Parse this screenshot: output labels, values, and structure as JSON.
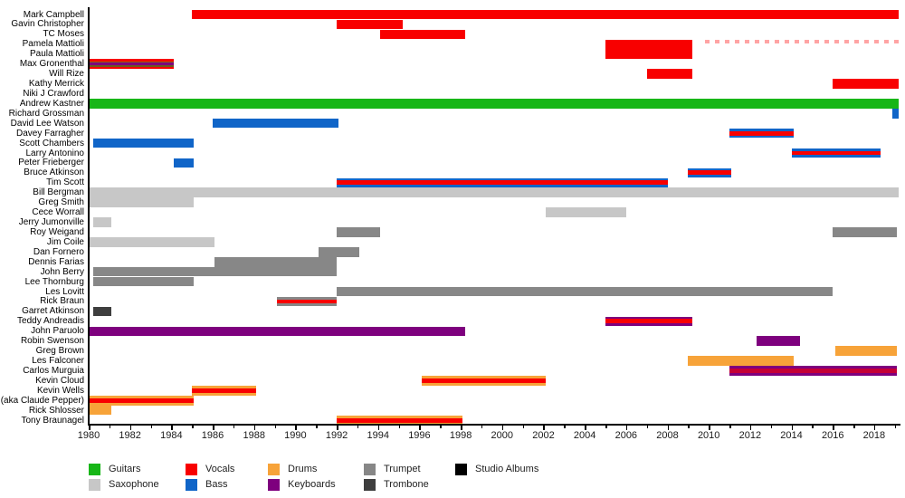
{
  "chart_data": {
    "type": "bar",
    "subtype": "gantt-membership-timeline",
    "title": "",
    "xlabel": "",
    "ylabel": "",
    "grid": false,
    "x_axis": {
      "min": 1980,
      "max": 2019.2,
      "major_tick_step": 2,
      "minor_tick_step": 1,
      "tick_labels": [
        "1980",
        "1982",
        "1984",
        "1986",
        "1988",
        "1990",
        "1992",
        "1994",
        "1996",
        "1998",
        "2000",
        "2002",
        "2004",
        "2006",
        "2008",
        "2010",
        "2012",
        "2014",
        "2016",
        "2018"
      ]
    },
    "role_colors": {
      "guitars": "#17b617",
      "vocals": "#f80000",
      "drums": "#f7a339",
      "trumpet": "#878787",
      "studio_albums": "#000000",
      "saxophone": "#c7c7c7",
      "bass": "#1065c8",
      "keyboards": "#7e007e",
      "trombone": "#3e3e3e"
    },
    "legend": {
      "position": "bottom-left",
      "items": [
        {
          "label": "Guitars",
          "role": "guitars",
          "col": 0,
          "row": 0
        },
        {
          "label": "Vocals",
          "role": "vocals",
          "col": 1,
          "row": 0
        },
        {
          "label": "Drums",
          "role": "drums",
          "col": 2,
          "row": 0
        },
        {
          "label": "Trumpet",
          "role": "trumpet",
          "col": 3,
          "row": 0
        },
        {
          "label": "Studio Albums",
          "role": "studio_albums",
          "col": 4,
          "row": 0
        },
        {
          "label": "Saxophone",
          "role": "saxophone",
          "col": 0,
          "row": 1
        },
        {
          "label": "Bass",
          "role": "bass",
          "col": 1,
          "row": 1
        },
        {
          "label": "Keyboards",
          "role": "keyboards",
          "col": 2,
          "row": 1
        },
        {
          "label": "Trombone",
          "role": "trombone",
          "col": 3,
          "row": 1
        }
      ]
    },
    "members": [
      {
        "name": "Mark Campbell",
        "segments": [
          {
            "start": 1985,
            "end": 2019.2,
            "roles": [
              "vocals"
            ]
          }
        ]
      },
      {
        "name": "Gavin Christopher",
        "segments": [
          {
            "start": 1992,
            "end": 1995.2,
            "roles": [
              "vocals"
            ]
          }
        ]
      },
      {
        "name": "TC Moses",
        "segments": [
          {
            "start": 1994.1,
            "end": 1998.2,
            "roles": [
              "vocals"
            ]
          }
        ]
      },
      {
        "name": "Pamela Mattioli",
        "segments": [
          {
            "start": 2005,
            "end": 2009.2,
            "roles": [
              "vocals"
            ]
          },
          {
            "start": 2009.8,
            "end": 2019.2,
            "roles": [
              "vocals"
            ],
            "style": "dashed"
          }
        ]
      },
      {
        "name": "Paula Mattioli",
        "segments": [
          {
            "start": 2005,
            "end": 2009.2,
            "roles": [
              "vocals"
            ]
          }
        ]
      },
      {
        "name": "Max Gronenthal",
        "segments": [
          {
            "start": 1980,
            "end": 1984.1,
            "roles": [
              "vocals",
              "drums",
              "guitars",
              "keyboards"
            ],
            "stripes": [
              {
                "c": "#f80000",
                "w": 2
              },
              {
                "c": "#8a6a14",
                "w": 1.6
              },
              {
                "c": "#7e007e",
                "w": 2.4
              },
              {
                "c": "#6b5a1e",
                "w": 1.6
              },
              {
                "c": "#f80000",
                "w": 2
              }
            ]
          }
        ]
      },
      {
        "name": "Will Rize",
        "segments": [
          {
            "start": 2007,
            "end": 2009.2,
            "roles": [
              "vocals"
            ]
          }
        ]
      },
      {
        "name": "Kathy Merrick",
        "segments": [
          {
            "start": 2016,
            "end": 2019.2,
            "roles": [
              "vocals"
            ]
          }
        ]
      },
      {
        "name": "Niki J Crawford",
        "segments": []
      },
      {
        "name": "Andrew Kastner",
        "segments": [
          {
            "start": 1980,
            "end": 2019.2,
            "roles": [
              "guitars"
            ]
          }
        ]
      },
      {
        "name": "Richard Grossman",
        "segments": [
          {
            "start": 2018.9,
            "end": 2019.2,
            "roles": [
              "bass"
            ]
          }
        ]
      },
      {
        "name": "David Lee Watson",
        "segments": [
          {
            "start": 1986,
            "end": 1992.1,
            "roles": [
              "bass"
            ]
          }
        ]
      },
      {
        "name": "Davey Farragher",
        "segments": [
          {
            "start": 2011,
            "end": 2014.1,
            "roles": [
              "bass",
              "vocals"
            ]
          }
        ]
      },
      {
        "name": "Scott Chambers",
        "segments": [
          {
            "start": 1980.2,
            "end": 1985.1,
            "roles": [
              "bass"
            ]
          }
        ]
      },
      {
        "name": "Larry Antonino",
        "segments": [
          {
            "start": 2014,
            "end": 2018.3,
            "roles": [
              "bass",
              "vocals"
            ]
          }
        ]
      },
      {
        "name": "Peter Frieberger",
        "segments": [
          {
            "start": 1984.1,
            "end": 1985.1,
            "roles": [
              "bass"
            ]
          }
        ]
      },
      {
        "name": "Bruce Atkinson",
        "segments": [
          {
            "start": 2009,
            "end": 2011.1,
            "roles": [
              "bass",
              "vocals"
            ]
          }
        ]
      },
      {
        "name": "Tim Scott",
        "segments": [
          {
            "start": 1992,
            "end": 2008,
            "roles": [
              "bass",
              "vocals"
            ]
          }
        ]
      },
      {
        "name": "Bill Bergman",
        "segments": [
          {
            "start": 1980,
            "end": 2019.2,
            "roles": [
              "saxophone"
            ]
          }
        ]
      },
      {
        "name": "Greg Smith",
        "segments": [
          {
            "start": 1980,
            "end": 1985.1,
            "roles": [
              "saxophone"
            ]
          }
        ]
      },
      {
        "name": "Cece Worrall",
        "segments": [
          {
            "start": 2002.1,
            "end": 2006,
            "roles": [
              "saxophone"
            ]
          }
        ]
      },
      {
        "name": "Jerry Jumonville",
        "segments": [
          {
            "start": 1980.2,
            "end": 1981.1,
            "roles": [
              "saxophone"
            ]
          }
        ]
      },
      {
        "name": "Roy Weigand",
        "segments": [
          {
            "start": 1992,
            "end": 1994.1,
            "roles": [
              "trumpet"
            ]
          },
          {
            "start": 2016,
            "end": 2019.1,
            "roles": [
              "trumpet"
            ]
          }
        ]
      },
      {
        "name": "Jim Coile",
        "segments": [
          {
            "start": 1980,
            "end": 1986.1,
            "roles": [
              "saxophone"
            ]
          }
        ]
      },
      {
        "name": "Dan Fornero",
        "segments": [
          {
            "start": 1991.1,
            "end": 1993.1,
            "roles": [
              "trumpet"
            ]
          }
        ]
      },
      {
        "name": "Dennis Farias",
        "segments": [
          {
            "start": 1986.1,
            "end": 1992,
            "roles": [
              "trumpet"
            ]
          }
        ]
      },
      {
        "name": "John Berry",
        "segments": [
          {
            "start": 1980.2,
            "end": 1992,
            "roles": [
              "trumpet"
            ]
          }
        ]
      },
      {
        "name": "Lee Thornburg",
        "segments": [
          {
            "start": 1980.2,
            "end": 1985.1,
            "roles": [
              "trumpet"
            ]
          }
        ]
      },
      {
        "name": "Les Lovitt",
        "segments": [
          {
            "start": 1992,
            "end": 2016,
            "roles": [
              "trumpet"
            ]
          }
        ]
      },
      {
        "name": "Rick Braun",
        "segments": [
          {
            "start": 1989.1,
            "end": 1992,
            "roles": [
              "trumpet",
              "vocals"
            ]
          }
        ]
      },
      {
        "name": "Garret Atkinson",
        "segments": [
          {
            "start": 1980.2,
            "end": 1981.1,
            "roles": [
              "trombone"
            ]
          }
        ]
      },
      {
        "name": "Teddy Andreadis",
        "segments": [
          {
            "start": 2005,
            "end": 2009.2,
            "roles": [
              "keyboards",
              "vocals"
            ]
          }
        ]
      },
      {
        "name": "John Paruolo",
        "segments": [
          {
            "start": 1980,
            "end": 1998.2,
            "roles": [
              "keyboards"
            ]
          }
        ]
      },
      {
        "name": "Robin Swenson",
        "segments": [
          {
            "start": 2012.3,
            "end": 2014.4,
            "roles": [
              "keyboards"
            ]
          }
        ]
      },
      {
        "name": "Greg Brown",
        "segments": [
          {
            "start": 2016.1,
            "end": 2019.1,
            "roles": [
              "drums"
            ]
          }
        ]
      },
      {
        "name": "Les Falconer",
        "segments": [
          {
            "start": 2009,
            "end": 2014.1,
            "roles": [
              "drums"
            ]
          }
        ]
      },
      {
        "name": "Carlos Murguia",
        "segments": [
          {
            "start": 2011,
            "end": 2019.1,
            "roles": [
              "keyboards",
              "vocals"
            ],
            "stripes": [
              {
                "c": "#7e007e",
                "w": 2.5
              },
              {
                "c": "#c40036",
                "w": 5.5
              },
              {
                "c": "#7e007e",
                "w": 2.5
              }
            ]
          }
        ]
      },
      {
        "name": "Kevin Cloud",
        "segments": [
          {
            "start": 1996.1,
            "end": 2002.1,
            "roles": [
              "drums",
              "vocals"
            ]
          }
        ]
      },
      {
        "name": "Kevin Wells",
        "segments": [
          {
            "start": 1985,
            "end": 1988.1,
            "roles": [
              "drums",
              "vocals"
            ]
          }
        ]
      },
      {
        "name": "(aka Claude Pepper)",
        "segments": [
          {
            "start": 1980,
            "end": 1985.1,
            "roles": [
              "drums",
              "vocals"
            ]
          }
        ]
      },
      {
        "name": "Rick Shlosser",
        "segments": [
          {
            "start": 1980,
            "end": 1981.1,
            "roles": [
              "drums"
            ]
          }
        ]
      },
      {
        "name": "Tony Braunagel",
        "segments": [
          {
            "start": 1992,
            "end": 1998.1,
            "roles": [
              "drums",
              "vocals"
            ]
          }
        ]
      }
    ]
  }
}
